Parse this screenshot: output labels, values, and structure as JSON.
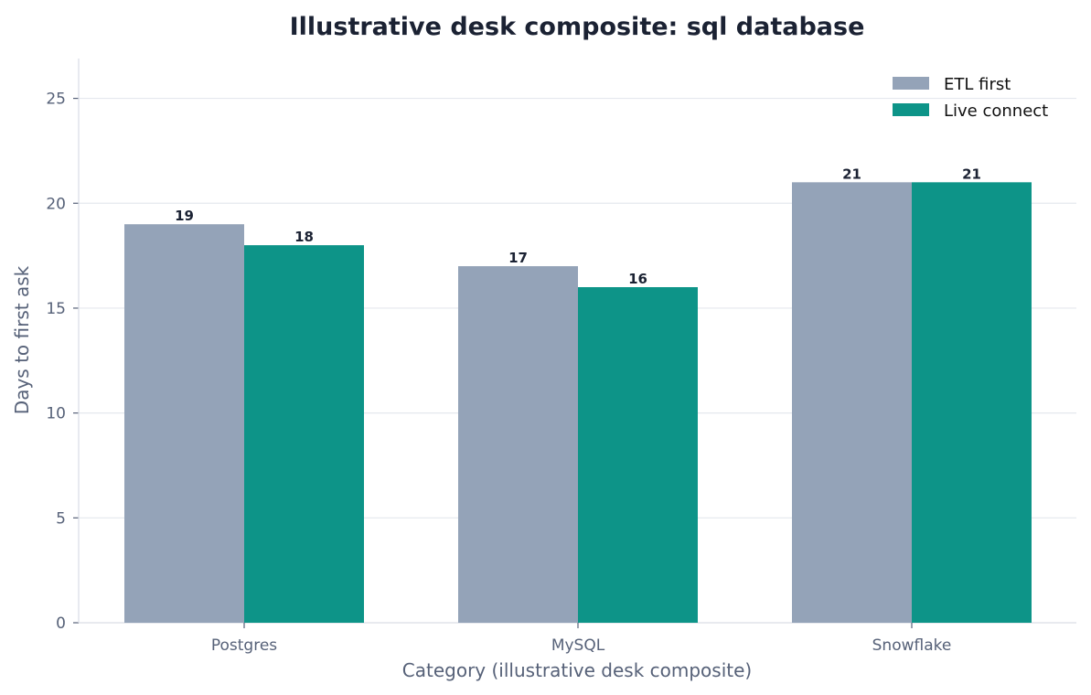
{
  "chart_data": {
    "type": "bar",
    "title": "Illustrative desk composite: sql database",
    "xlabel": "Category (illustrative desk composite)",
    "ylabel": "Days to first ask",
    "categories": [
      "Postgres",
      "MySQL",
      "Snowflake"
    ],
    "series": [
      {
        "name": "ETL first",
        "values": [
          19,
          17,
          21
        ],
        "color": "#94a3b8"
      },
      {
        "name": "Live connect",
        "values": [
          18,
          16,
          21
        ],
        "color": "#0d9488"
      }
    ],
    "ylim": [
      0,
      26.9
    ],
    "yticks": [
      0,
      5,
      10,
      15,
      20,
      25
    ],
    "grid": "horizontal",
    "legend_position": "top-right",
    "colors": {
      "title": "#1b2233",
      "axis_text": "#566178",
      "grid": "#e5e8ee",
      "axis_line": "#d9dde5"
    }
  }
}
